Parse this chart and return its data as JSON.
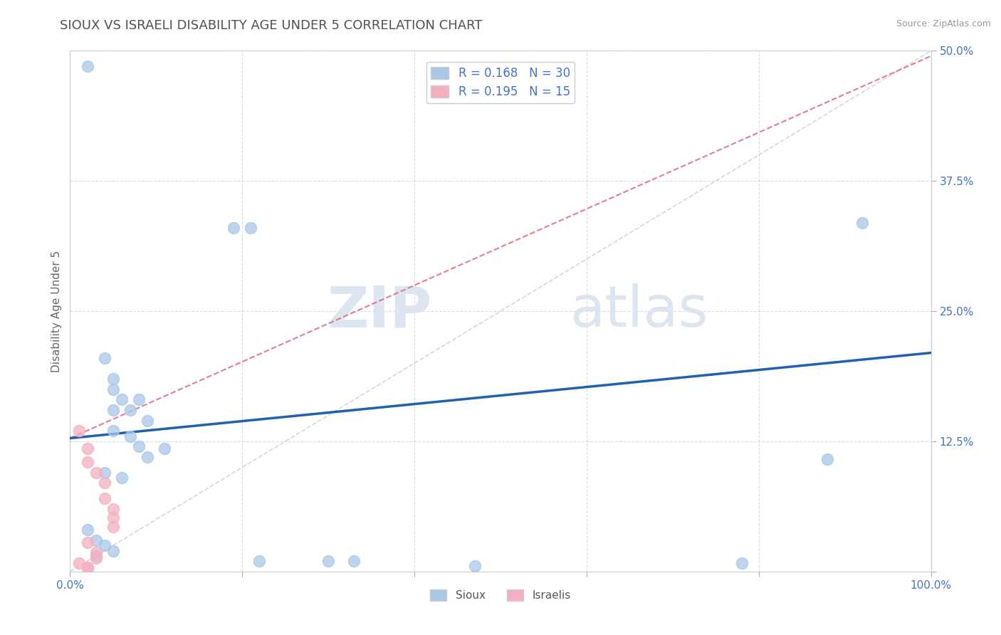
{
  "title": "SIOUX VS ISRAELI DISABILITY AGE UNDER 5 CORRELATION CHART",
  "source": "Source: ZipAtlas.com",
  "ylabel": "Disability Age Under 5",
  "x_ticks": [
    0.0,
    0.2,
    0.4,
    0.6,
    0.8,
    1.0
  ],
  "x_tick_labels": [
    "0.0%",
    "",
    "",
    "",
    "",
    "100.0%"
  ],
  "y_ticks": [
    0.0,
    0.125,
    0.25,
    0.375,
    0.5
  ],
  "y_tick_labels_right": [
    "",
    "12.5%",
    "25.0%",
    "37.5%",
    "50.0%"
  ],
  "xlim": [
    0.0,
    1.0
  ],
  "ylim": [
    0.0,
    0.5
  ],
  "sioux_R": 0.168,
  "sioux_N": 30,
  "israeli_R": 0.195,
  "israeli_N": 15,
  "sioux_color": "#a8c8e8",
  "israeli_color": "#f4b0c0",
  "sioux_line_color": "#2060b0",
  "israeli_line_color": "#e06878",
  "watermark_zip": "ZIP",
  "watermark_atlas": "atlas",
  "background_color": "#ffffff",
  "grid_color": "#d0d8e8",
  "tick_color": "#4472c4",
  "title_color": "#505050",
  "title_fontsize": 13,
  "axis_fontsize": 11,
  "sioux_points": [
    [
      0.02,
      0.485
    ],
    [
      0.19,
      0.33
    ],
    [
      0.21,
      0.33
    ],
    [
      0.04,
      0.205
    ],
    [
      0.05,
      0.185
    ],
    [
      0.05,
      0.175
    ],
    [
      0.06,
      0.165
    ],
    [
      0.08,
      0.165
    ],
    [
      0.05,
      0.155
    ],
    [
      0.07,
      0.155
    ],
    [
      0.09,
      0.145
    ],
    [
      0.05,
      0.135
    ],
    [
      0.07,
      0.13
    ],
    [
      0.08,
      0.12
    ],
    [
      0.11,
      0.118
    ],
    [
      0.09,
      0.11
    ],
    [
      0.04,
      0.095
    ],
    [
      0.06,
      0.09
    ],
    [
      0.02,
      0.04
    ],
    [
      0.03,
      0.03
    ],
    [
      0.04,
      0.025
    ],
    [
      0.05,
      0.02
    ],
    [
      0.03,
      0.015
    ],
    [
      0.22,
      0.01
    ],
    [
      0.3,
      0.01
    ],
    [
      0.33,
      0.01
    ],
    [
      0.47,
      0.005
    ],
    [
      0.78,
      0.008
    ],
    [
      0.88,
      0.108
    ],
    [
      0.92,
      0.335
    ]
  ],
  "israeli_points": [
    [
      0.01,
      0.135
    ],
    [
      0.02,
      0.118
    ],
    [
      0.02,
      0.105
    ],
    [
      0.03,
      0.095
    ],
    [
      0.04,
      0.085
    ],
    [
      0.04,
      0.07
    ],
    [
      0.05,
      0.06
    ],
    [
      0.05,
      0.052
    ],
    [
      0.05,
      0.043
    ],
    [
      0.02,
      0.028
    ],
    [
      0.03,
      0.018
    ],
    [
      0.03,
      0.013
    ],
    [
      0.01,
      0.008
    ],
    [
      0.02,
      0.004
    ],
    [
      0.02,
      0.003
    ]
  ],
  "sioux_line_x": [
    0.0,
    1.0
  ],
  "sioux_line_y": [
    0.128,
    0.21
  ],
  "israeli_line_x": [
    0.0,
    1.0
  ],
  "israeli_line_y": [
    0.128,
    0.495
  ],
  "ref_line_x": [
    0.0,
    1.0
  ],
  "ref_line_y": [
    0.0,
    0.5
  ]
}
